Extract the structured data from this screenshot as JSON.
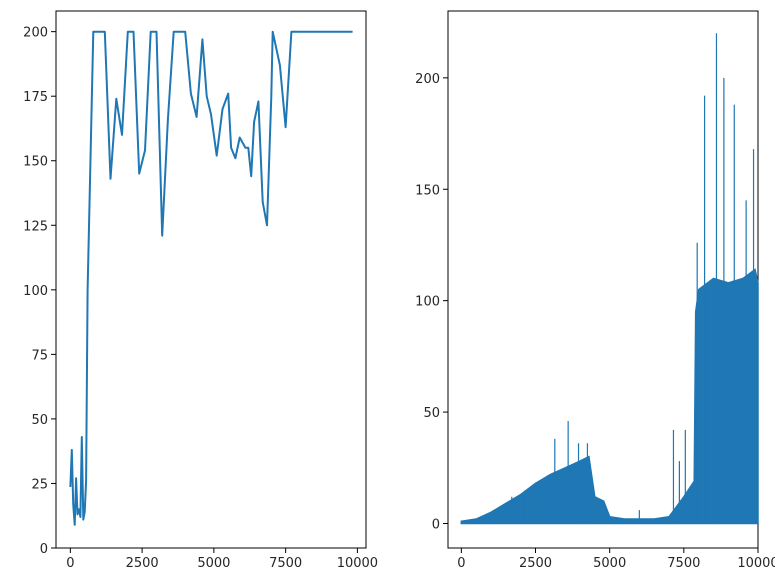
{
  "chart_data": [
    {
      "type": "line",
      "xlim": [
        -500,
        10300
      ],
      "ylim": [
        0,
        208
      ],
      "xticks": [
        0,
        2500,
        5000,
        7500,
        10000
      ],
      "xtick_labels": [
        "0",
        "2500",
        "5000",
        "7500",
        "10000"
      ],
      "yticks": [
        0,
        25,
        50,
        75,
        100,
        125,
        150,
        175,
        200
      ],
      "ytick_labels": [
        "0",
        "25",
        "50",
        "75",
        100,
        125,
        150,
        175,
        200
      ],
      "grid": false,
      "series": [
        {
          "color": "#1f77b4",
          "x": [
            0,
            50,
            100,
            150,
            200,
            250,
            300,
            350,
            400,
            450,
            500,
            550,
            600,
            800,
            1000,
            1200,
            1400,
            1600,
            1800,
            2000,
            2200,
            2400,
            2600,
            2800,
            3000,
            3200,
            3400,
            3600,
            3800,
            4000,
            4200,
            4400,
            4600,
            4750,
            4900,
            5100,
            5300,
            5500,
            5600,
            5750,
            5900,
            6000,
            6100,
            6200,
            6300,
            6400,
            6550,
            6700,
            6850,
            7000,
            7050,
            7300,
            7500,
            7700,
            7900,
            8000,
            8500,
            9000,
            9500,
            9800
          ],
          "y": [
            24,
            38,
            17,
            9,
            27,
            13,
            15,
            12,
            43,
            11,
            14,
            26,
            100,
            200,
            200,
            200,
            143,
            174,
            160,
            200,
            200,
            145,
            154,
            200,
            200,
            121,
            166,
            200,
            200,
            200,
            176,
            167,
            197,
            175,
            168,
            152,
            170,
            176,
            155,
            151,
            159,
            157,
            155,
            155,
            144,
            165,
            173,
            134,
            125,
            175,
            200,
            187,
            163,
            200,
            200,
            200,
            200,
            200,
            200,
            200
          ]
        }
      ]
    },
    {
      "type": "line",
      "xlim": [
        -450,
        10000
      ],
      "ylim": [
        -11,
        230
      ],
      "xticks": [
        0,
        2500,
        5000,
        7500,
        10000
      ],
      "xtick_labels": [
        "0",
        "2500",
        "5000",
        "7500",
        "10000"
      ],
      "yticks": [
        0,
        50,
        100,
        150,
        200
      ],
      "ytick_labels": [
        "0",
        "50",
        "100",
        "150",
        "200"
      ],
      "grid": false,
      "series": [
        {
          "color": "#1f77b4",
          "envelope_x": [
            0,
            500,
            1000,
            1500,
            2000,
            2500,
            3000,
            3500,
            4000,
            4300,
            4500,
            4800,
            5000,
            5500,
            6000,
            6500,
            7000,
            7500,
            7850,
            7900,
            8000,
            8500,
            9000,
            9500,
            9900,
            10000
          ],
          "envelope_y": [
            1,
            2,
            5,
            9,
            13,
            18,
            22,
            25,
            28,
            30,
            12,
            10,
            3,
            2,
            2,
            2,
            3,
            12,
            19,
            95,
            105,
            110,
            108,
            110,
            114,
            108
          ],
          "peaks_x": [
            1700,
            2100,
            3150,
            3600,
            3950,
            4250,
            6000,
            7150,
            7350,
            7550,
            7950,
            8200,
            8600,
            8850,
            9200,
            9600,
            9850
          ],
          "peaks_y": [
            12,
            14,
            38,
            46,
            36,
            36,
            6,
            42,
            28,
            42,
            126,
            192,
            220,
            200,
            188,
            145,
            168
          ]
        }
      ]
    }
  ]
}
